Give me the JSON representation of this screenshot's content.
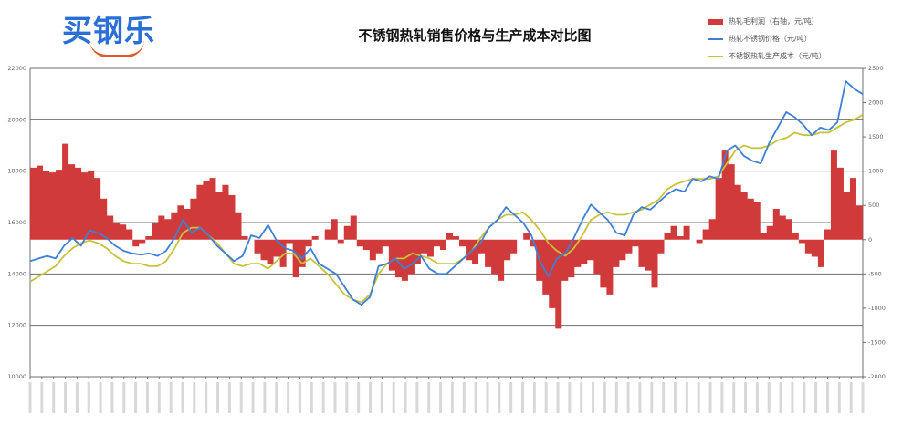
{
  "brand": {
    "logo_text": "买钢乐",
    "logo_color": "#2a6fd8",
    "smile_color": "#e2572c"
  },
  "chart_data": {
    "type": "bar+line",
    "title": "不锈钢热轧销售价格与生产成本对比图",
    "legend": [
      {
        "name": "热轧毛利润（右轴，元/吨）",
        "type": "bar",
        "color": "#d13a3a"
      },
      {
        "name": "热轧不锈钢价格（元/吨）",
        "type": "line",
        "color": "#3f7fd6"
      },
      {
        "name": "不锈钢热轧生产成本（元/吨）",
        "type": "line",
        "color": "#c8c23a"
      }
    ],
    "left_axis": {
      "ticks": [
        "22000",
        "20000",
        "18000",
        "16000",
        "14000",
        "12000",
        "10000"
      ],
      "range": [
        10000,
        22000
      ]
    },
    "right_axis": {
      "ticks": [
        "2500",
        "2000",
        "1500",
        "1000",
        "500",
        "0",
        "-500",
        "-1000",
        "-1500",
        "-2000"
      ],
      "range": [
        -2000,
        2500
      ]
    },
    "grid": true,
    "x_ticks_count": 72,
    "series": [
      {
        "name": "热轧毛利润",
        "axis": "right",
        "values": [
          1050,
          1080,
          1000,
          980,
          1020,
          1400,
          1100,
          1050,
          980,
          1010,
          900,
          600,
          350,
          250,
          220,
          150,
          -100,
          -50,
          50,
          250,
          350,
          300,
          400,
          500,
          450,
          600,
          800,
          850,
          900,
          700,
          800,
          650,
          400,
          50,
          0,
          -200,
          -300,
          -350,
          -250,
          -400,
          -50,
          -550,
          -400,
          -100,
          50,
          0,
          150,
          300,
          -50,
          200,
          350,
          -100,
          -150,
          -300,
          -200,
          -100,
          -450,
          -550,
          -600,
          -500,
          -350,
          -200,
          -250,
          -100,
          -150,
          100,
          50,
          -100,
          -300,
          -350,
          -200,
          -400,
          -500,
          -600,
          -300,
          -200,
          0,
          100,
          -100,
          -600,
          -800,
          -1000,
          -1300,
          -600,
          -550,
          -400,
          -350,
          -300,
          -500,
          -700,
          -800,
          -400,
          -300,
          -200,
          -100,
          -400,
          -450,
          -700,
          -200,
          100,
          200,
          50,
          200,
          0,
          -50,
          150,
          300,
          900,
          1300,
          1100,
          800,
          700,
          600,
          550,
          100,
          200,
          450,
          350,
          300,
          100,
          -50,
          -200,
          -250,
          -400,
          150,
          1300,
          1050,
          700,
          900,
          500
        ]
      },
      {
        "name": "热轧不锈钢价格",
        "axis": "left",
        "values": [
          14500,
          14600,
          14700,
          14600,
          15100,
          15400,
          15100,
          15700,
          15600,
          15400,
          15100,
          14900,
          14800,
          14750,
          14800,
          14700,
          14900,
          15400,
          16100,
          15600,
          15800,
          15500,
          15100,
          14800,
          14500,
          14700,
          15500,
          15400,
          15900,
          15300,
          15000,
          14900,
          14600,
          15000,
          14400,
          14200,
          14000,
          13500,
          13000,
          12800,
          13100,
          14300,
          14400,
          14600,
          14200,
          14400,
          14700,
          14200,
          14000,
          14000,
          14300,
          14600,
          14900,
          15200,
          15800,
          16100,
          16600,
          16300,
          16000,
          15500,
          14500,
          13900,
          14600,
          14800,
          15400,
          16100,
          16700,
          16400,
          16100,
          15600,
          15500,
          16300,
          16600,
          16500,
          16800,
          17100,
          17300,
          17200,
          17700,
          17600,
          17800,
          17700,
          18800,
          19000,
          18600,
          18400,
          18300,
          19100,
          19700,
          20300,
          20100,
          19800,
          19400,
          19700,
          19600,
          19900,
          21500,
          21200,
          21000
        ]
      },
      {
        "name": "不锈钢热轧生产成本",
        "axis": "left",
        "values": [
          13700,
          13900,
          14100,
          14300,
          14700,
          15000,
          15200,
          15300,
          15200,
          15000,
          14700,
          14500,
          14400,
          14400,
          14300,
          14300,
          14500,
          15000,
          15600,
          15800,
          15800,
          15500,
          15200,
          14800,
          14400,
          14300,
          14400,
          14400,
          14200,
          14500,
          14800,
          14800,
          14400,
          14600,
          14300,
          14000,
          13600,
          13200,
          13000,
          12900,
          13200,
          14000,
          14400,
          14600,
          14600,
          14800,
          14700,
          14600,
          14400,
          14400,
          14400,
          14600,
          14900,
          15400,
          15800,
          16100,
          16300,
          16300,
          16400,
          16100,
          15700,
          15200,
          14900,
          14700,
          15000,
          15500,
          16100,
          16300,
          16400,
          16300,
          16300,
          16400,
          16500,
          16700,
          16900,
          17300,
          17500,
          17600,
          17700,
          17700,
          17700,
          17800,
          18300,
          18800,
          19000,
          18900,
          18900,
          19000,
          19200,
          19300,
          19500,
          19400,
          19400,
          19500,
          19500,
          19700,
          19900,
          20000,
          20200
        ]
      }
    ]
  },
  "colors": {
    "bar": "#d13a3a",
    "price_line": "#3f7fd6",
    "cost_line": "#c8c23a",
    "grid": "#6f6f6f",
    "axis": "#6f6f6f"
  }
}
